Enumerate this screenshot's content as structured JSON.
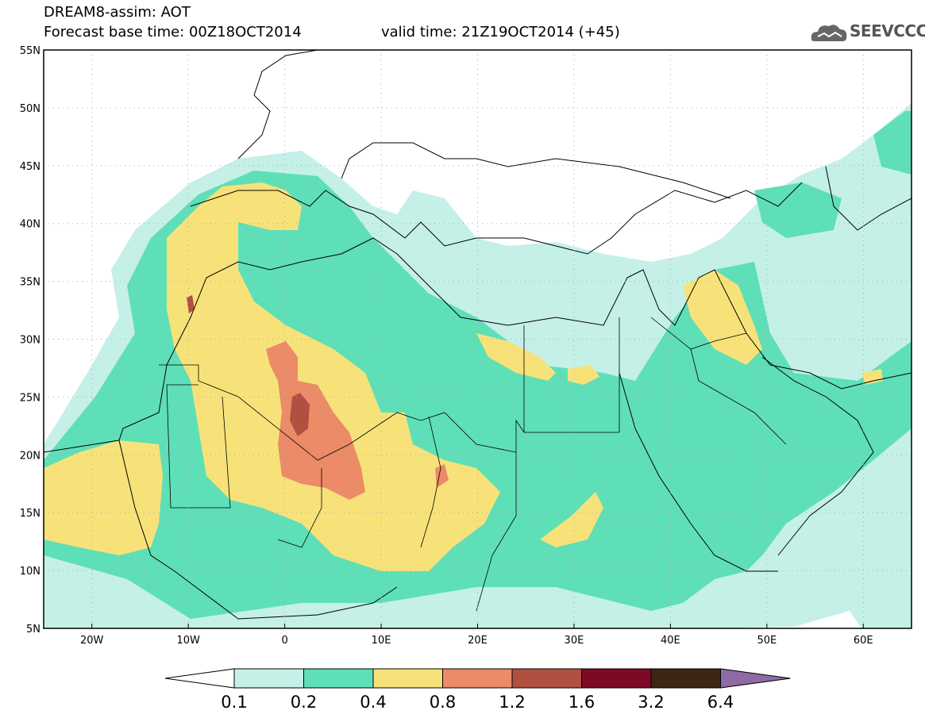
{
  "header": {
    "title": "DREAM8-assim: AOT",
    "base_time": "Forecast base time: 00Z18OCT2014",
    "valid_time": "valid time: 21Z19OCT2014 (+45)",
    "logo_text": "SEEVCCC"
  },
  "map": {
    "lon_range": [
      -25,
      65
    ],
    "lat_range": [
      5,
      55
    ],
    "lat_ticks": [
      {
        "value": 55,
        "label": "55N"
      },
      {
        "value": 50,
        "label": "50N"
      },
      {
        "value": 45,
        "label": "45N"
      },
      {
        "value": 40,
        "label": "40N"
      },
      {
        "value": 35,
        "label": "35N"
      },
      {
        "value": 30,
        "label": "30N"
      },
      {
        "value": 25,
        "label": "25N"
      },
      {
        "value": 20,
        "label": "20N"
      },
      {
        "value": 15,
        "label": "15N"
      },
      {
        "value": 10,
        "label": "10N"
      },
      {
        "value": 5,
        "label": "5N"
      }
    ],
    "lon_ticks": [
      {
        "value": -20,
        "label": "20W"
      },
      {
        "value": -10,
        "label": "10W"
      },
      {
        "value": 0,
        "label": "0"
      },
      {
        "value": 10,
        "label": "10E"
      },
      {
        "value": 20,
        "label": "20E"
      },
      {
        "value": 30,
        "label": "30E"
      },
      {
        "value": 40,
        "label": "40E"
      },
      {
        "value": 50,
        "label": "50E"
      },
      {
        "value": 60,
        "label": "60E"
      }
    ],
    "grid": "dotted"
  },
  "colorbar": {
    "levels": [
      "0.1",
      "0.2",
      "0.4",
      "0.8",
      "1.2",
      "1.6",
      "3.2",
      "6.4"
    ],
    "colors": [
      "#ffffff",
      "#c4f0e8",
      "#5fdfb7",
      "#f7e27a",
      "#eb8b67",
      "#b05041",
      "#7d0a25",
      "#3c2615",
      "#8e6aa6"
    ]
  }
}
